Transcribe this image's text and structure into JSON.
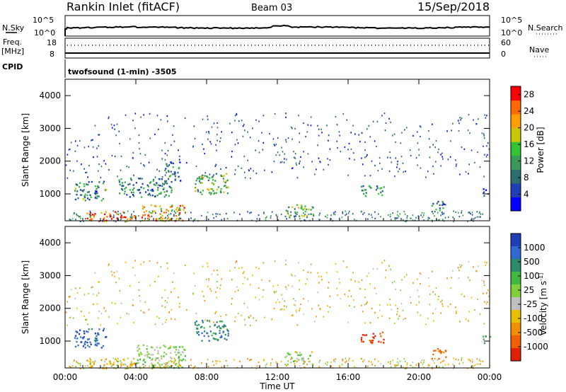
{
  "header": {
    "station": "Rankin Inlet (fitACF)",
    "beam": "Beam 03",
    "date": "15/Sep/2018"
  },
  "top_panels": {
    "nsky_label": "N.Sky",
    "nsearch_label": "N.Search",
    "noise_tick_top": "10^5",
    "noise_tick_bottom": "10^0",
    "freq_label": "Freq.",
    "freq_unit": "[MHz]",
    "freq_tick_top": "18",
    "freq_tick_bottom": "8",
    "nave_label": "Nave",
    "nave_tick_top": "60",
    "nave_tick_bottom": "0",
    "cpid_label": "CPID",
    "cpid_text": "twofsound (1-min) -3505"
  },
  "chart_data": [
    {
      "type": "heatmap",
      "panel": "power",
      "ylabel": "Slant Range [km]",
      "xlabel": "",
      "ylim": [
        180,
        4500
      ],
      "xlim": [
        "00:00",
        "24:00"
      ],
      "yticks": [
        "1000",
        "2000",
        "3000",
        "4000"
      ],
      "colorbar": {
        "label": "Power [dB]",
        "ticks": [
          "4",
          "8",
          "12",
          "16",
          "20",
          "24",
          "28"
        ],
        "range": [
          0,
          30
        ],
        "colors": [
          "#0000ff",
          "#1f3fb4",
          "#2d6e6e",
          "#3a9a5a",
          "#33c433",
          "#c8c800",
          "#ffa000",
          "#ff6a00",
          "#ff0000"
        ]
      },
      "regions": [
        {
          "t0": 0.5,
          "t1": 2.3,
          "r0": 800,
          "r1": 1400,
          "level": 10
        },
        {
          "t0": 1.2,
          "t1": 4.0,
          "r0": 180,
          "r1": 500,
          "level": 26
        },
        {
          "t0": 4.3,
          "t1": 6.8,
          "r0": 180,
          "r1": 700,
          "level": 22
        },
        {
          "t0": 3.0,
          "t1": 6.0,
          "r0": 900,
          "r1": 1500,
          "level": 10
        },
        {
          "t0": 5.6,
          "t1": 6.5,
          "r0": 1400,
          "r1": 2000,
          "level": 8
        },
        {
          "t0": 7.3,
          "t1": 9.2,
          "r0": 1000,
          "r1": 1650,
          "level": 14
        },
        {
          "t0": 12.4,
          "t1": 14.0,
          "r0": 300,
          "r1": 700,
          "level": 14
        },
        {
          "t0": 16.7,
          "t1": 18.0,
          "r0": 950,
          "r1": 1300,
          "level": 10
        },
        {
          "t0": 20.7,
          "t1": 21.5,
          "r0": 450,
          "r1": 800,
          "level": 10
        },
        {
          "t0": 23.6,
          "t1": 24.0,
          "r0": 950,
          "r1": 1200,
          "level": 8
        }
      ]
    },
    {
      "type": "heatmap",
      "panel": "velocity",
      "ylabel": "Slant Range [km]",
      "xlabel": "Time UT",
      "ylim": [
        180,
        4500
      ],
      "xlim": [
        "00:00",
        "24:00"
      ],
      "xticks": [
        "00:00",
        "04:00",
        "08:00",
        "12:00",
        "16:00",
        "20:00",
        "00:00"
      ],
      "yticks": [
        "1000",
        "2000",
        "3000",
        "4000"
      ],
      "colorbar": {
        "label": "Velocity [m s^-1]",
        "ticks": [
          "1000",
          "500",
          "100",
          "25",
          "-25",
          "-100",
          "-500",
          "-1000"
        ],
        "colors": [
          "#1f3fb4",
          "#2e6ad0",
          "#2d8a6a",
          "#3fba3f",
          "#7fd03a",
          "#c0c0c0",
          "#e8c000",
          "#f09000",
          "#f06000",
          "#e02000"
        ]
      },
      "regions": [
        {
          "t0": 0.5,
          "t1": 2.3,
          "r0": 800,
          "r1": 1400,
          "level": 800
        },
        {
          "t0": 1.2,
          "t1": 4.0,
          "r0": 180,
          "r1": 500,
          "level": 0
        },
        {
          "t0": 4.0,
          "t1": 6.8,
          "r0": 180,
          "r1": 900,
          "level": 80
        },
        {
          "t0": 7.3,
          "t1": 9.2,
          "r0": 1000,
          "r1": 1650,
          "level": 400
        },
        {
          "t0": 12.4,
          "t1": 14.0,
          "r0": 300,
          "r1": 700,
          "level": 60
        },
        {
          "t0": 16.7,
          "t1": 18.0,
          "r0": 950,
          "r1": 1300,
          "level": -600
        },
        {
          "t0": 20.7,
          "t1": 21.5,
          "r0": 450,
          "r1": 800,
          "level": -150
        },
        {
          "t0": 23.6,
          "t1": 24.0,
          "r0": 950,
          "r1": 1200,
          "level": 200
        }
      ]
    }
  ]
}
